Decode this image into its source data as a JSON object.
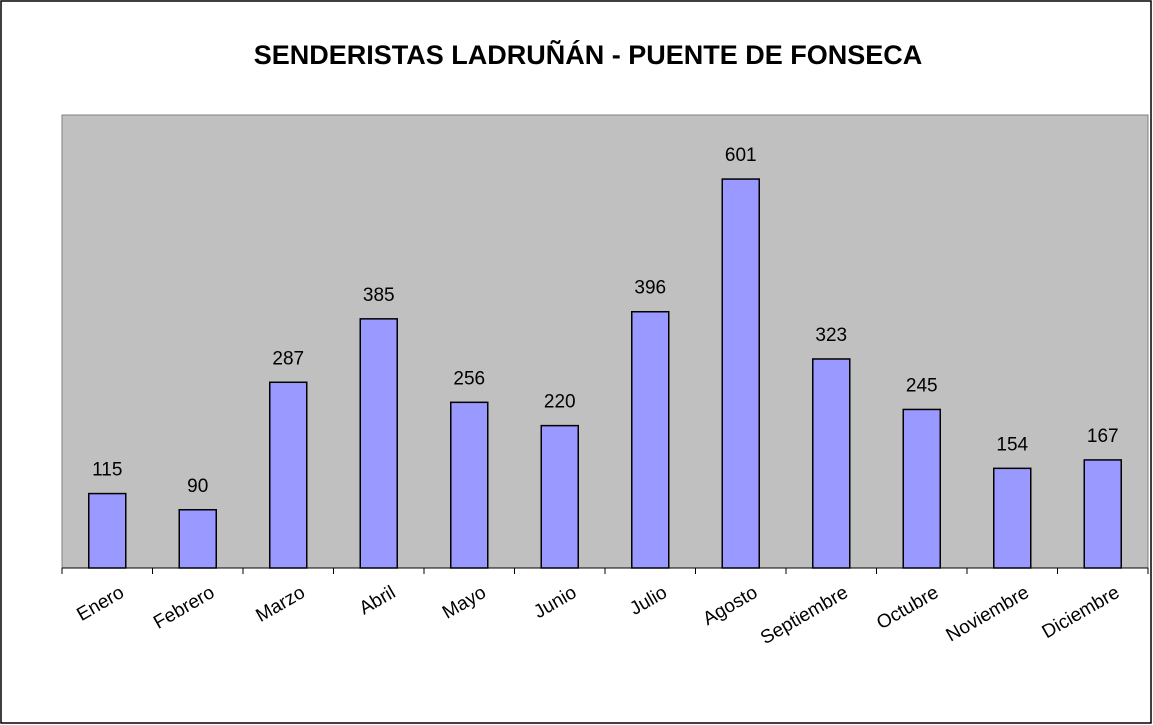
{
  "chart_data": {
    "type": "bar",
    "title": "SENDERISTAS LADRUÑÁN - PUENTE DE FONSECA",
    "categories": [
      "Enero",
      "Febrero",
      "Marzo",
      "Abril",
      "Mayo",
      "Junio",
      "Julio",
      "Agosto",
      "Septiembre",
      "Octubre",
      "Noviembre",
      "Diciembre"
    ],
    "values": [
      115,
      90,
      287,
      385,
      256,
      220,
      396,
      601,
      323,
      245,
      154,
      167
    ],
    "color": "#9999ff",
    "ylim": [
      0,
      700
    ]
  }
}
